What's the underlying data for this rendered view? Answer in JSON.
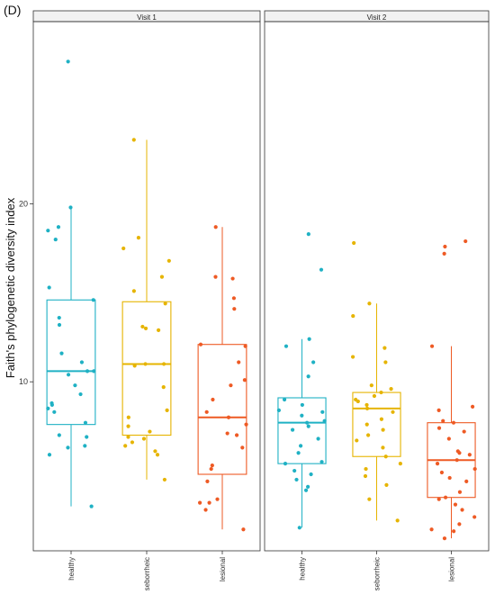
{
  "figure": {
    "panel_label": "(D)"
  },
  "chart_data": {
    "type": "box",
    "ylabel": "Faith's phylogenetic diversity index",
    "ylim": [
      0.5,
      30.5
    ],
    "yticks": [
      10,
      20
    ],
    "grid": false,
    "legend": "none",
    "categories": [
      "healthy",
      "seborrheic",
      "lesional"
    ],
    "category_labels": [
      "healthy",
      "seborrheic",
      "lesional"
    ],
    "colors": {
      "healthy": "#1fb1c4",
      "seborrheic": "#e6b400",
      "lesional": "#ee5a24"
    },
    "facets": [
      {
        "label": "Visit 1",
        "groups": [
          {
            "name": "healthy",
            "box": {
              "lower_whisker": 3.0,
              "q1": 7.6,
              "median": 10.6,
              "q3": 14.6,
              "upper_whisker": 19.9
            },
            "points": [
              28.0,
              19.8,
              18.7,
              18.5,
              18.0,
              15.3,
              14.6,
              13.6,
              13.2,
              11.6,
              11.1,
              10.6,
              10.6,
              10.4,
              9.8,
              9.3,
              8.8,
              8.7,
              8.5,
              8.3,
              7.7,
              7.0,
              6.9,
              6.4,
              6.3,
              5.9,
              3.0
            ]
          },
          {
            "name": "seborrheic",
            "box": {
              "lower_whisker": 4.5,
              "q1": 7.0,
              "median": 11.0,
              "q3": 14.5,
              "upper_whisker": 23.6
            },
            "points": [
              23.6,
              18.1,
              17.5,
              16.8,
              15.9,
              15.1,
              14.4,
              13.1,
              13.0,
              12.9,
              11.0,
              11.0,
              10.9,
              9.7,
              8.4,
              8.0,
              7.5,
              7.2,
              6.9,
              6.8,
              6.6,
              6.4,
              6.1,
              5.9,
              4.5
            ]
          },
          {
            "name": "lesional",
            "box": {
              "lower_whisker": 1.7,
              "q1": 4.8,
              "median": 8.0,
              "q3": 12.1,
              "upper_whisker": 18.7
            },
            "points": [
              18.7,
              15.9,
              15.8,
              14.7,
              14.1,
              12.1,
              12.0,
              11.1,
              10.1,
              9.8,
              9.0,
              8.3,
              8.0,
              7.6,
              7.1,
              7.0,
              6.3,
              5.3,
              5.1,
              4.4,
              3.4,
              3.2,
              3.2,
              2.8,
              1.7
            ]
          }
        ]
      },
      {
        "label": "Visit 2",
        "groups": [
          {
            "name": "healthy",
            "box": {
              "lower_whisker": 1.8,
              "q1": 5.4,
              "median": 7.7,
              "q3": 9.1,
              "upper_whisker": 12.4
            },
            "points": [
              18.3,
              16.3,
              12.4,
              12.0,
              11.1,
              10.3,
              9.0,
              8.7,
              8.4,
              8.3,
              8.1,
              7.8,
              7.7,
              7.5,
              7.3,
              6.8,
              6.4,
              6.0,
              5.5,
              5.4,
              5.0,
              4.8,
              4.5,
              4.1,
              3.9,
              1.8
            ]
          },
          {
            "name": "seborrheic",
            "box": {
              "lower_whisker": 2.2,
              "q1": 5.8,
              "median": 8.5,
              "q3": 9.4,
              "upper_whisker": 14.4
            },
            "points": [
              17.8,
              14.4,
              13.7,
              11.9,
              11.4,
              11.1,
              9.8,
              9.6,
              9.4,
              9.2,
              9.0,
              8.9,
              8.7,
              8.5,
              8.3,
              7.9,
              7.6,
              7.3,
              7.0,
              6.7,
              6.3,
              5.8,
              5.4,
              5.1,
              4.7,
              4.2,
              3.4,
              2.2
            ]
          },
          {
            "name": "lesional",
            "box": {
              "lower_whisker": 1.2,
              "q1": 3.5,
              "median": 5.6,
              "q3": 7.7,
              "upper_whisker": 12.0
            },
            "points": [
              17.9,
              17.6,
              17.2,
              12.0,
              8.6,
              8.4,
              7.8,
              7.7,
              7.4,
              7.2,
              6.8,
              6.1,
              6.0,
              5.9,
              5.6,
              5.4,
              5.1,
              4.9,
              4.6,
              4.4,
              3.8,
              3.5,
              3.4,
              3.1,
              2.8,
              2.4,
              2.0,
              1.7,
              1.6,
              1.2
            ]
          }
        ]
      }
    ]
  }
}
